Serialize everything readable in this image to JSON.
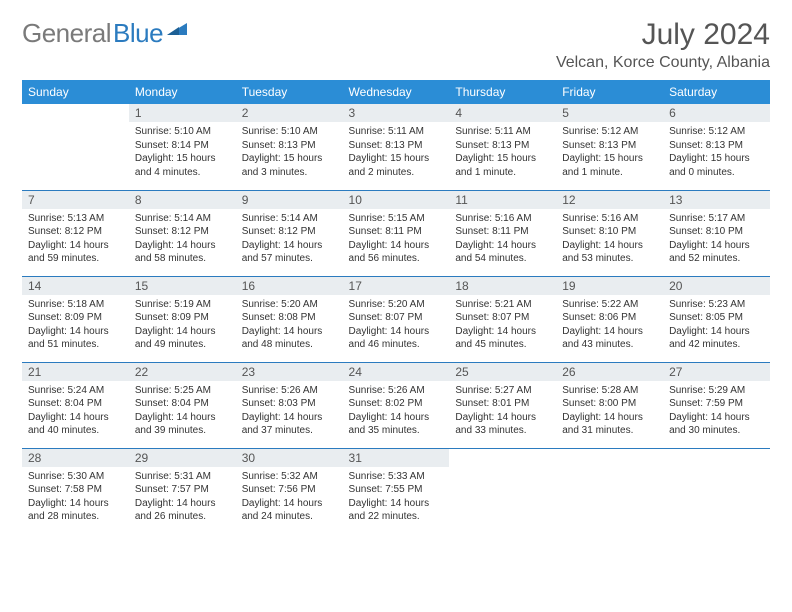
{
  "logo": {
    "text_gray": "General",
    "text_blue": "Blue"
  },
  "title": "July 2024",
  "location": "Velcan, Korce County, Albania",
  "colors": {
    "header_bg": "#2b8dd6",
    "header_text": "#ffffff",
    "daynum_bg": "#e9edf0",
    "row_border": "#2b7bbf",
    "logo_gray": "#7a7a7a",
    "logo_blue": "#2b7bbf"
  },
  "weekdays": [
    "Sunday",
    "Monday",
    "Tuesday",
    "Wednesday",
    "Thursday",
    "Friday",
    "Saturday"
  ],
  "weeks": [
    [
      {
        "n": "",
        "sr": "",
        "ss": "",
        "dl": ""
      },
      {
        "n": "1",
        "sr": "Sunrise: 5:10 AM",
        "ss": "Sunset: 8:14 PM",
        "dl": "Daylight: 15 hours and 4 minutes."
      },
      {
        "n": "2",
        "sr": "Sunrise: 5:10 AM",
        "ss": "Sunset: 8:13 PM",
        "dl": "Daylight: 15 hours and 3 minutes."
      },
      {
        "n": "3",
        "sr": "Sunrise: 5:11 AM",
        "ss": "Sunset: 8:13 PM",
        "dl": "Daylight: 15 hours and 2 minutes."
      },
      {
        "n": "4",
        "sr": "Sunrise: 5:11 AM",
        "ss": "Sunset: 8:13 PM",
        "dl": "Daylight: 15 hours and 1 minute."
      },
      {
        "n": "5",
        "sr": "Sunrise: 5:12 AM",
        "ss": "Sunset: 8:13 PM",
        "dl": "Daylight: 15 hours and 1 minute."
      },
      {
        "n": "6",
        "sr": "Sunrise: 5:12 AM",
        "ss": "Sunset: 8:13 PM",
        "dl": "Daylight: 15 hours and 0 minutes."
      }
    ],
    [
      {
        "n": "7",
        "sr": "Sunrise: 5:13 AM",
        "ss": "Sunset: 8:12 PM",
        "dl": "Daylight: 14 hours and 59 minutes."
      },
      {
        "n": "8",
        "sr": "Sunrise: 5:14 AM",
        "ss": "Sunset: 8:12 PM",
        "dl": "Daylight: 14 hours and 58 minutes."
      },
      {
        "n": "9",
        "sr": "Sunrise: 5:14 AM",
        "ss": "Sunset: 8:12 PM",
        "dl": "Daylight: 14 hours and 57 minutes."
      },
      {
        "n": "10",
        "sr": "Sunrise: 5:15 AM",
        "ss": "Sunset: 8:11 PM",
        "dl": "Daylight: 14 hours and 56 minutes."
      },
      {
        "n": "11",
        "sr": "Sunrise: 5:16 AM",
        "ss": "Sunset: 8:11 PM",
        "dl": "Daylight: 14 hours and 54 minutes."
      },
      {
        "n": "12",
        "sr": "Sunrise: 5:16 AM",
        "ss": "Sunset: 8:10 PM",
        "dl": "Daylight: 14 hours and 53 minutes."
      },
      {
        "n": "13",
        "sr": "Sunrise: 5:17 AM",
        "ss": "Sunset: 8:10 PM",
        "dl": "Daylight: 14 hours and 52 minutes."
      }
    ],
    [
      {
        "n": "14",
        "sr": "Sunrise: 5:18 AM",
        "ss": "Sunset: 8:09 PM",
        "dl": "Daylight: 14 hours and 51 minutes."
      },
      {
        "n": "15",
        "sr": "Sunrise: 5:19 AM",
        "ss": "Sunset: 8:09 PM",
        "dl": "Daylight: 14 hours and 49 minutes."
      },
      {
        "n": "16",
        "sr": "Sunrise: 5:20 AM",
        "ss": "Sunset: 8:08 PM",
        "dl": "Daylight: 14 hours and 48 minutes."
      },
      {
        "n": "17",
        "sr": "Sunrise: 5:20 AM",
        "ss": "Sunset: 8:07 PM",
        "dl": "Daylight: 14 hours and 46 minutes."
      },
      {
        "n": "18",
        "sr": "Sunrise: 5:21 AM",
        "ss": "Sunset: 8:07 PM",
        "dl": "Daylight: 14 hours and 45 minutes."
      },
      {
        "n": "19",
        "sr": "Sunrise: 5:22 AM",
        "ss": "Sunset: 8:06 PM",
        "dl": "Daylight: 14 hours and 43 minutes."
      },
      {
        "n": "20",
        "sr": "Sunrise: 5:23 AM",
        "ss": "Sunset: 8:05 PM",
        "dl": "Daylight: 14 hours and 42 minutes."
      }
    ],
    [
      {
        "n": "21",
        "sr": "Sunrise: 5:24 AM",
        "ss": "Sunset: 8:04 PM",
        "dl": "Daylight: 14 hours and 40 minutes."
      },
      {
        "n": "22",
        "sr": "Sunrise: 5:25 AM",
        "ss": "Sunset: 8:04 PM",
        "dl": "Daylight: 14 hours and 39 minutes."
      },
      {
        "n": "23",
        "sr": "Sunrise: 5:26 AM",
        "ss": "Sunset: 8:03 PM",
        "dl": "Daylight: 14 hours and 37 minutes."
      },
      {
        "n": "24",
        "sr": "Sunrise: 5:26 AM",
        "ss": "Sunset: 8:02 PM",
        "dl": "Daylight: 14 hours and 35 minutes."
      },
      {
        "n": "25",
        "sr": "Sunrise: 5:27 AM",
        "ss": "Sunset: 8:01 PM",
        "dl": "Daylight: 14 hours and 33 minutes."
      },
      {
        "n": "26",
        "sr": "Sunrise: 5:28 AM",
        "ss": "Sunset: 8:00 PM",
        "dl": "Daylight: 14 hours and 31 minutes."
      },
      {
        "n": "27",
        "sr": "Sunrise: 5:29 AM",
        "ss": "Sunset: 7:59 PM",
        "dl": "Daylight: 14 hours and 30 minutes."
      }
    ],
    [
      {
        "n": "28",
        "sr": "Sunrise: 5:30 AM",
        "ss": "Sunset: 7:58 PM",
        "dl": "Daylight: 14 hours and 28 minutes."
      },
      {
        "n": "29",
        "sr": "Sunrise: 5:31 AM",
        "ss": "Sunset: 7:57 PM",
        "dl": "Daylight: 14 hours and 26 minutes."
      },
      {
        "n": "30",
        "sr": "Sunrise: 5:32 AM",
        "ss": "Sunset: 7:56 PM",
        "dl": "Daylight: 14 hours and 24 minutes."
      },
      {
        "n": "31",
        "sr": "Sunrise: 5:33 AM",
        "ss": "Sunset: 7:55 PM",
        "dl": "Daylight: 14 hours and 22 minutes."
      },
      {
        "n": "",
        "sr": "",
        "ss": "",
        "dl": ""
      },
      {
        "n": "",
        "sr": "",
        "ss": "",
        "dl": ""
      },
      {
        "n": "",
        "sr": "",
        "ss": "",
        "dl": ""
      }
    ]
  ]
}
